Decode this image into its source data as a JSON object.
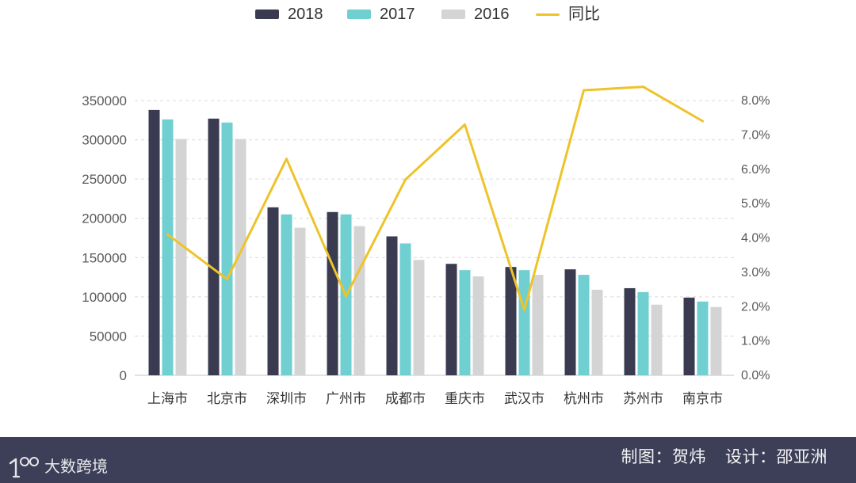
{
  "chart_data": {
    "type": "bar",
    "categories": [
      "上海市",
      "北京市",
      "深圳市",
      "广州市",
      "成都市",
      "重庆市",
      "武汉市",
      "杭州市",
      "苏州市",
      "南京市"
    ],
    "series": [
      {
        "name": "2018",
        "type": "bar",
        "axis": "left",
        "color": "#3a3b50",
        "values": [
          338000,
          327000,
          214000,
          208000,
          177000,
          142000,
          138000,
          135000,
          111000,
          99000
        ]
      },
      {
        "name": "2017",
        "type": "bar",
        "axis": "left",
        "color": "#6fcfd1",
        "values": [
          326000,
          322000,
          205000,
          205000,
          168000,
          134000,
          134000,
          128000,
          106000,
          94000
        ]
      },
      {
        "name": "2016",
        "type": "bar",
        "axis": "left",
        "color": "#d4d4d4",
        "values": [
          301000,
          301000,
          188000,
          190000,
          147000,
          126000,
          128000,
          109000,
          90000,
          87000
        ]
      },
      {
        "name": "同比",
        "type": "line",
        "axis": "right",
        "color": "#eec32a",
        "values": [
          4.1,
          2.8,
          6.3,
          2.3,
          5.7,
          7.3,
          1.9,
          8.3,
          8.4,
          7.4
        ]
      }
    ],
    "y_left": {
      "ylim": [
        0,
        350000
      ],
      "ticks": [
        0,
        50000,
        100000,
        150000,
        200000,
        250000,
        300000,
        350000
      ],
      "tick_labels": [
        "0",
        "50000",
        "100000",
        "150000",
        "200000",
        "250000",
        "300000",
        "350000"
      ]
    },
    "y_right": {
      "ylim": [
        0,
        8
      ],
      "ticks": [
        0,
        1,
        2,
        3,
        4,
        5,
        6,
        7,
        8
      ],
      "tick_labels": [
        "0.0%",
        "1.0%",
        "2.0%",
        "3.0%",
        "4.0%",
        "5.0%",
        "6.0%",
        "7.0%",
        "8.0%"
      ]
    },
    "grid": true,
    "legend_position": "top"
  },
  "footer": {
    "background": "#3d3f58",
    "brand_icon": "brand-logo-icon",
    "brand": "大数跨境",
    "chart_credit": "制图：贺炜",
    "design_credit": "设计：邵亚洲"
  }
}
